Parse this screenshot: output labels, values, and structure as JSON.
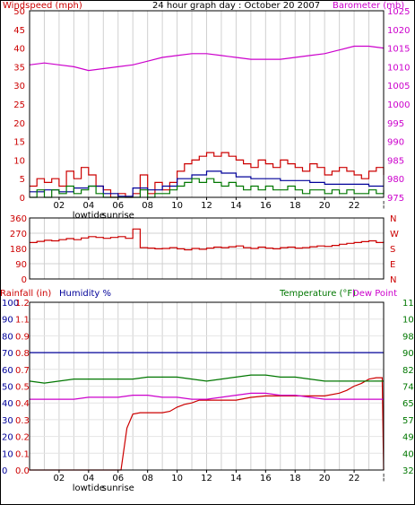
{
  "chart_data": [
    {
      "type": "line",
      "title": "24 hour graph day : October 20 2007",
      "ylabel": "Windspeed (mph)",
      "y2label": "Barometer (mb)",
      "x_ticks": [
        "02",
        "04",
        "06",
        "08",
        "10",
        "12",
        "14",
        "16",
        "18",
        "20",
        "22"
      ],
      "x_annotations": [
        {
          "x": 4,
          "text": "lowtide"
        },
        {
          "x": 6,
          "text": "sunrise"
        }
      ],
      "end_marker": "¦",
      "xlim": [
        0,
        24
      ],
      "ylim": [
        0,
        50
      ],
      "yticks": [
        0,
        5,
        10,
        15,
        20,
        25,
        30,
        35,
        40,
        45,
        50
      ],
      "y2lim": [
        975,
        1025
      ],
      "y2ticks": [
        975,
        980,
        985,
        990,
        995,
        1000,
        1005,
        1010,
        1015,
        1020,
        1025
      ],
      "grid": true,
      "series": [
        {
          "color": "#cc0000",
          "axis": "left",
          "x": [
            0,
            0.5,
            1,
            1.5,
            2,
            2.5,
            3,
            3.5,
            4,
            4.5,
            5,
            5.5,
            6,
            6.5,
            7,
            7.5,
            8,
            8.5,
            9,
            9.5,
            10,
            10.5,
            11,
            11.5,
            12,
            12.5,
            13,
            13.5,
            14,
            14.5,
            15,
            15.5,
            16,
            16.5,
            17,
            17.5,
            18,
            18.5,
            19,
            19.5,
            20,
            20.5,
            21,
            21.5,
            22,
            22.5,
            23,
            23.5,
            24
          ],
          "y": [
            3,
            5,
            4,
            5,
            3,
            7,
            5,
            8,
            6,
            3,
            2,
            0,
            1,
            0,
            1,
            6,
            1,
            4,
            2,
            4,
            7,
            9,
            10,
            11,
            12,
            11,
            12,
            11,
            10,
            9,
            8,
            10,
            9,
            8,
            10,
            9,
            8,
            7,
            9,
            8,
            6,
            7,
            8,
            7,
            6,
            5,
            7,
            8,
            6
          ]
        },
        {
          "color": "#000099",
          "axis": "left",
          "x": [
            0,
            1,
            2,
            3,
            4,
            5,
            6,
            7,
            8,
            9,
            10,
            11,
            12,
            13,
            14,
            15,
            16,
            17,
            18,
            19,
            20,
            21,
            22,
            23,
            24
          ],
          "y": [
            1.5,
            2,
            1.5,
            2.5,
            3,
            1,
            0.3,
            2.5,
            2,
            3,
            5,
            6,
            7,
            6.5,
            5.5,
            5,
            5,
            4.5,
            4.5,
            4,
            3.5,
            3.5,
            3.5,
            3,
            3
          ]
        },
        {
          "color": "#007700",
          "axis": "left",
          "x": [
            0,
            0.5,
            1,
            1.5,
            2,
            2.5,
            3,
            3.5,
            4,
            4.5,
            5,
            5.5,
            6,
            6.5,
            7,
            7.5,
            8,
            8.5,
            9,
            9.5,
            10,
            10.5,
            11,
            11.5,
            12,
            12.5,
            13,
            13.5,
            14,
            14.5,
            15,
            15.5,
            16,
            16.5,
            17,
            17.5,
            18,
            18.5,
            19,
            19.5,
            20,
            20.5,
            21,
            21.5,
            22,
            22.5,
            23,
            23.5,
            24
          ],
          "y": [
            0,
            2,
            0,
            2,
            1,
            3,
            1,
            2,
            3,
            1,
            0,
            0,
            0,
            0,
            0,
            2,
            0,
            1,
            1,
            2,
            3,
            4,
            5,
            4,
            5,
            4,
            3,
            4,
            3,
            2,
            3,
            2,
            3,
            2,
            2,
            3,
            2,
            1,
            2,
            2,
            1,
            2,
            1,
            2,
            1,
            1,
            2,
            1,
            2
          ]
        },
        {
          "color": "#cc00cc",
          "axis": "right",
          "x": [
            0,
            1,
            2,
            3,
            4,
            5,
            6,
            7,
            8,
            9,
            10,
            11,
            12,
            13,
            14,
            15,
            16,
            17,
            18,
            19,
            20,
            21,
            22,
            23,
            24
          ],
          "y": [
            1010.5,
            1011,
            1010.5,
            1010,
            1009,
            1009.5,
            1010,
            1010.5,
            1011.5,
            1012.5,
            1013,
            1013.5,
            1013.5,
            1013,
            1012.5,
            1012,
            1012,
            1012,
            1012.5,
            1013,
            1013.5,
            1014.5,
            1015.5,
            1015.5,
            1015
          ]
        }
      ]
    },
    {
      "type": "line",
      "ylabel_right": [
        "N",
        "W",
        "S",
        "E",
        "N"
      ],
      "xlim": [
        0,
        24
      ],
      "ylim": [
        0,
        360
      ],
      "yticks": [
        0,
        90,
        180,
        270,
        360
      ],
      "grid": true,
      "series": [
        {
          "color": "#cc0000",
          "x": [
            0,
            0.5,
            1,
            1.5,
            2,
            2.5,
            3,
            3.5,
            4,
            4.5,
            5,
            5.5,
            6,
            6.5,
            7,
            7.5,
            8,
            8.5,
            9,
            9.5,
            10,
            10.5,
            11,
            11.5,
            12,
            12.5,
            13,
            13.5,
            14,
            14.5,
            15,
            15.5,
            16,
            16.5,
            17,
            17.5,
            18,
            18.5,
            19,
            19.5,
            20,
            20.5,
            21,
            21.5,
            22,
            22.5,
            23,
            23.5,
            24
          ],
          "y": [
            215,
            222,
            228,
            225,
            232,
            238,
            232,
            242,
            250,
            245,
            240,
            245,
            250,
            240,
            295,
            185,
            182,
            178,
            180,
            185,
            178,
            172,
            180,
            175,
            182,
            188,
            185,
            190,
            195,
            185,
            180,
            188,
            182,
            178,
            185,
            188,
            182,
            185,
            190,
            195,
            192,
            198,
            205,
            210,
            215,
            220,
            225,
            215,
            220
          ]
        }
      ]
    },
    {
      "type": "line",
      "ylabel": "Rainfall (in)",
      "ylabel2": "Humidity %",
      "y2label": "Temperature (°F)",
      "y3label": "Dew Point",
      "x_ticks": [
        "02",
        "04",
        "06",
        "08",
        "10",
        "12",
        "14",
        "16",
        "18",
        "20",
        "22"
      ],
      "x_annotations": [
        {
          "x": 4,
          "text": "lowtide"
        },
        {
          "x": 6,
          "text": "sunrise"
        }
      ],
      "end_marker": "¦",
      "xlim": [
        0,
        24
      ],
      "ylim": [
        0,
        100
      ],
      "yticks": [
        0,
        10,
        20,
        30,
        40,
        50,
        60,
        70,
        80,
        90,
        100
      ],
      "rain_ticks": [
        "0.0",
        "0.1",
        "0.2",
        "0.3",
        "0.4",
        "0.5",
        "0.7",
        "0.8",
        "0.9",
        "1.1",
        "1.2"
      ],
      "humidity_ticks": [
        "0",
        "10",
        "20",
        "30",
        "40",
        "50",
        "60",
        "70",
        "80",
        "90",
        "100"
      ],
      "y2ticks": [
        "32",
        "40",
        "49",
        "57",
        "65",
        "74",
        "82",
        "90",
        "98",
        "107",
        "115"
      ],
      "grid": true,
      "series": [
        {
          "name": "Rainfall (in)",
          "color": "#cc0000",
          "axis": "rain",
          "x": [
            0,
            6.2,
            6.6,
            7,
            7.5,
            9,
            9.5,
            10,
            10.5,
            11,
            11.5,
            12,
            13,
            14,
            15,
            16,
            17,
            18,
            19,
            20,
            21,
            21.5,
            22,
            22.5,
            23,
            23.5,
            23.9,
            24
          ],
          "y": [
            0,
            0,
            0.3,
            0.4,
            0.41,
            0.41,
            0.42,
            0.45,
            0.47,
            0.48,
            0.5,
            0.5,
            0.5,
            0.5,
            0.52,
            0.53,
            0.53,
            0.53,
            0.53,
            0.53,
            0.55,
            0.57,
            0.6,
            0.62,
            0.65,
            0.66,
            0.66,
            0
          ]
        },
        {
          "name": "Humidity %",
          "color": "#000099",
          "axis": "left",
          "x": [
            0,
            24
          ],
          "y": [
            70,
            70
          ]
        },
        {
          "name": "Temperature (°F)",
          "color": "#007700",
          "axis": "right",
          "x": [
            0,
            1,
            2,
            3,
            4,
            5,
            6,
            7,
            8,
            9,
            10,
            11,
            12,
            13,
            14,
            15,
            16,
            17,
            18,
            19,
            20,
            21,
            22,
            23,
            24
          ],
          "y": [
            76,
            75,
            76,
            77,
            77,
            77,
            77,
            77,
            78,
            78,
            78,
            77,
            76,
            77,
            78,
            79,
            79,
            78,
            78,
            77,
            76,
            76,
            76,
            76,
            76
          ]
        },
        {
          "name": "Dew Point",
          "color": "#cc00cc",
          "axis": "right",
          "x": [
            0,
            1,
            2,
            3,
            4,
            5,
            6,
            7,
            8,
            9,
            10,
            11,
            12,
            13,
            14,
            15,
            16,
            17,
            18,
            19,
            20,
            21,
            22,
            23,
            24
          ],
          "y": [
            67,
            67,
            67,
            67,
            68,
            68,
            68,
            69,
            69,
            68,
            68,
            67,
            67,
            68,
            69,
            70,
            70,
            69,
            69,
            68,
            67,
            67,
            67,
            67,
            67
          ]
        }
      ]
    }
  ]
}
